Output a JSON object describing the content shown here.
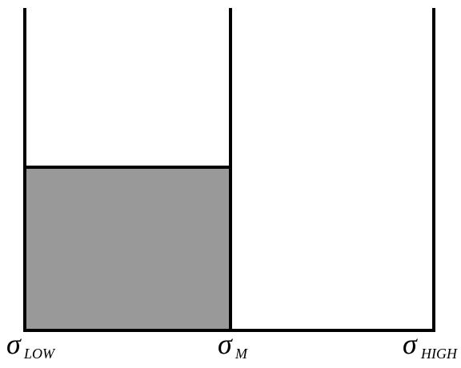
{
  "labels": [
    {
      "symbol": "σ",
      "subscript": "LOW"
    },
    {
      "symbol": "σ",
      "subscript": "M"
    },
    {
      "symbol": "σ",
      "subscript": "HIGH"
    }
  ]
}
